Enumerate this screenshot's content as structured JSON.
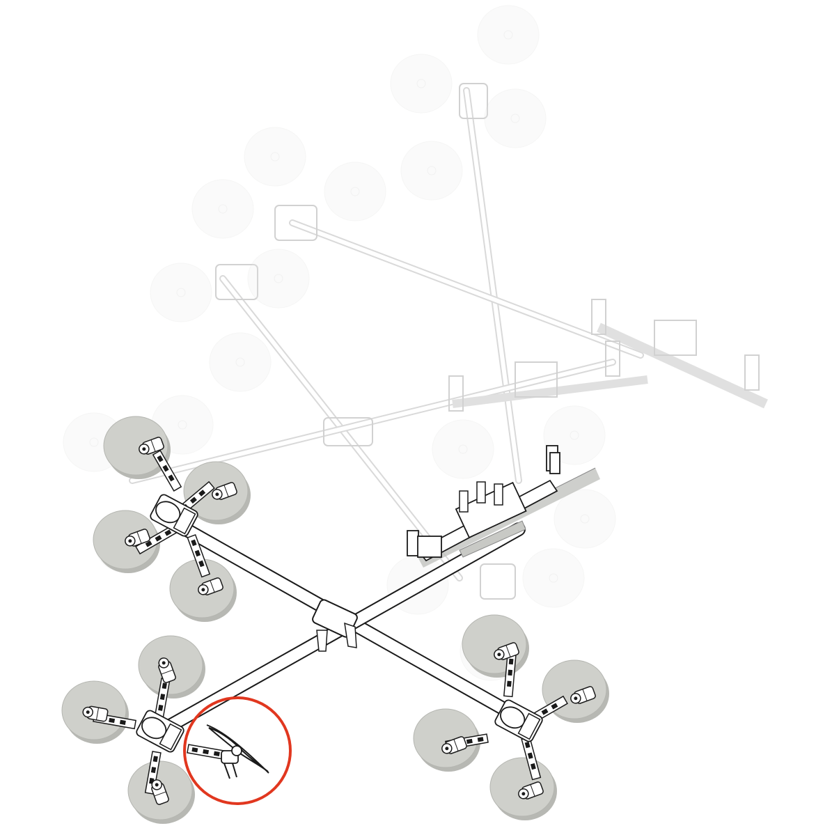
{
  "colors": {
    "background": "#ffffff",
    "line": "#1a1a1a",
    "rotor_fill": "#cfd0cb",
    "rotor_edge": "#b4b5b0",
    "faint_line": "#b8b8b8",
    "highlight_circle": "#e1371f"
  },
  "icons": {
    "highlight": "red-circle-highlight",
    "propeller": "propeller-icon"
  }
}
